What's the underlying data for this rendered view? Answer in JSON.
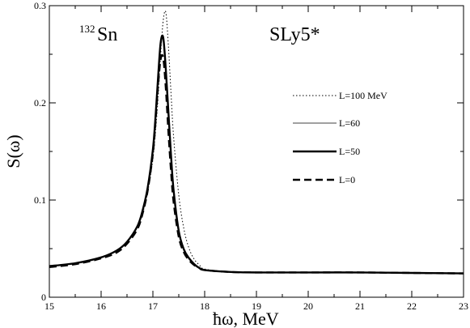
{
  "chart_data": {
    "type": "line",
    "xlabel": "ħω, MeV",
    "ylabel": "S(ω)",
    "xlim": [
      15,
      23
    ],
    "ylim": [
      0,
      0.3
    ],
    "xticks": [
      "15",
      "16",
      "17",
      "18",
      "19",
      "20",
      "21",
      "22",
      "23"
    ],
    "yticks": [
      "0",
      "0.1",
      "0.2",
      "0.3"
    ],
    "grid": false,
    "legend_position": "right",
    "annotations": {
      "nucleus_mass": "132",
      "nucleus_symbol": "Sn",
      "interaction": "SLy5*"
    },
    "x": [
      15,
      15.5,
      16,
      16.3,
      16.5,
      16.7,
      16.8,
      16.9,
      17.0,
      17.05,
      17.1,
      17.15,
      17.2,
      17.25,
      17.3,
      17.35,
      17.4,
      17.5,
      17.6,
      17.7,
      17.8,
      17.9,
      18.0,
      18.5,
      19,
      20,
      21,
      22,
      23
    ],
    "series": [
      {
        "name": "L=100 MeV",
        "style": "dotted",
        "values": [
          0.032,
          0.035,
          0.041,
          0.048,
          0.057,
          0.072,
          0.086,
          0.108,
          0.142,
          0.17,
          0.205,
          0.25,
          0.285,
          0.293,
          0.258,
          0.21,
          0.165,
          0.105,
          0.07,
          0.05,
          0.039,
          0.033,
          0.029,
          0.026,
          0.0255,
          0.0255,
          0.0255,
          0.025,
          0.0245
        ]
      },
      {
        "name": "L=60",
        "style": "thin",
        "values": [
          0.032,
          0.035,
          0.041,
          0.048,
          0.057,
          0.073,
          0.088,
          0.112,
          0.15,
          0.182,
          0.222,
          0.257,
          0.265,
          0.232,
          0.188,
          0.145,
          0.11,
          0.068,
          0.049,
          0.04,
          0.034,
          0.03,
          0.028,
          0.026,
          0.0255,
          0.0255,
          0.0255,
          0.025,
          0.0245
        ]
      },
      {
        "name": "L=50",
        "style": "thick",
        "values": [
          0.032,
          0.035,
          0.041,
          0.048,
          0.057,
          0.073,
          0.089,
          0.113,
          0.152,
          0.185,
          0.226,
          0.262,
          0.267,
          0.234,
          0.19,
          0.146,
          0.11,
          0.068,
          0.049,
          0.04,
          0.034,
          0.03,
          0.028,
          0.026,
          0.0255,
          0.0255,
          0.0255,
          0.025,
          0.0245
        ]
      },
      {
        "name": "L=0",
        "style": "dashed",
        "values": [
          0.031,
          0.034,
          0.04,
          0.046,
          0.055,
          0.07,
          0.086,
          0.11,
          0.148,
          0.18,
          0.218,
          0.245,
          0.246,
          0.215,
          0.17,
          0.13,
          0.098,
          0.062,
          0.046,
          0.038,
          0.033,
          0.03,
          0.028,
          0.026,
          0.0255,
          0.0255,
          0.0255,
          0.025,
          0.0245
        ]
      }
    ]
  }
}
